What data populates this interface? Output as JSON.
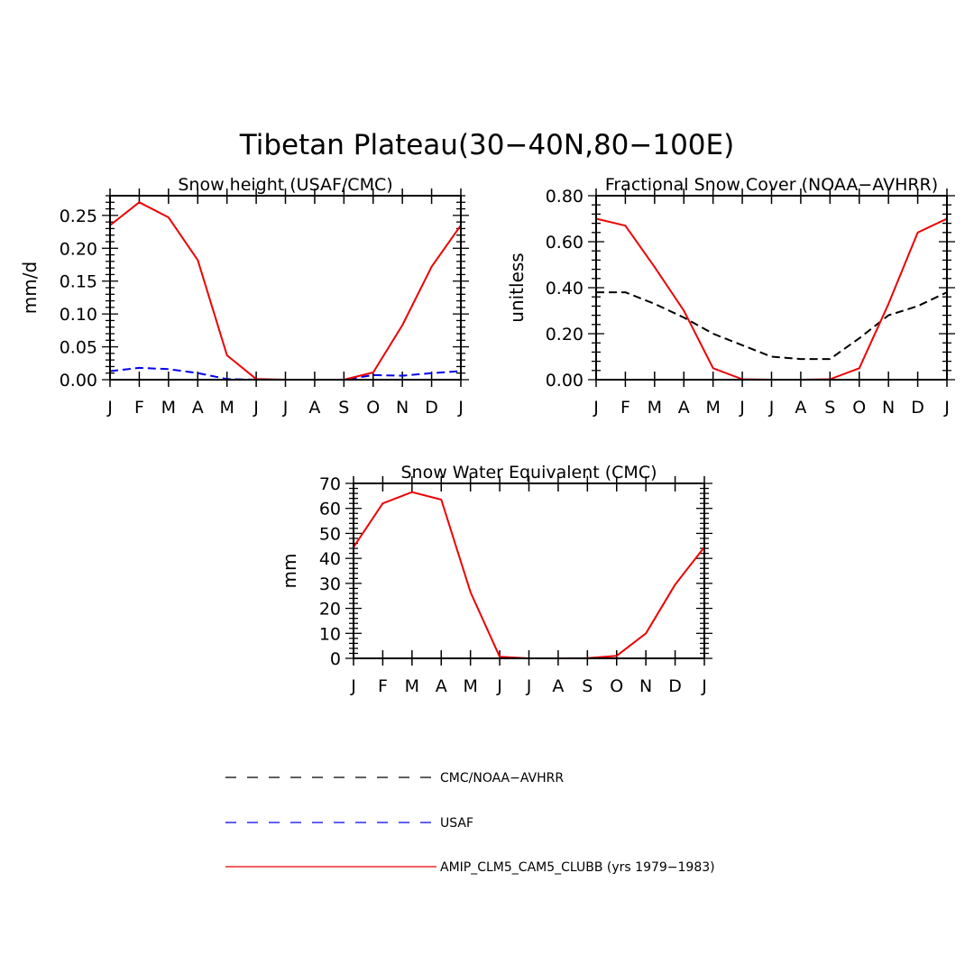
{
  "figure": {
    "title": "Tibetan Plateau(30−40N,80−100E)"
  },
  "months": [
    "J",
    "F",
    "M",
    "A",
    "M",
    "J",
    "J",
    "A",
    "S",
    "O",
    "N",
    "D",
    "J"
  ],
  "legend": [
    {
      "label": "CMC/NOAA−AVHRR",
      "color": "#000000",
      "style": "dashed"
    },
    {
      "label": "USAF",
      "color": "#0000ee",
      "style": "dashed"
    },
    {
      "label": "AMIP_CLM5_CAM5_CLUBB (yrs 1979−1983)",
      "color": "#ee0000",
      "style": "solid"
    }
  ],
  "chart_data": [
    {
      "type": "line",
      "title": "Snow height (USAF/CMC)",
      "xlabel": "",
      "ylabel": "mm/d",
      "ylim": [
        0,
        0.28
      ],
      "yticks": [
        0,
        0.05,
        0.1,
        0.15,
        0.2,
        0.25
      ],
      "yticklabels": [
        "0.00",
        "0.05",
        "0.10",
        "0.15",
        "0.20",
        "0.25"
      ],
      "categories": [
        "J",
        "F",
        "M",
        "A",
        "M",
        "J",
        "J",
        "A",
        "S",
        "O",
        "N",
        "D",
        "J"
      ],
      "series": [
        {
          "name": "CMC/NOAA−AVHRR",
          "color": "#000000",
          "dashed": true,
          "values": [
            0,
            0,
            0,
            0,
            0,
            0,
            0,
            0,
            0,
            0,
            0,
            0,
            0
          ]
        },
        {
          "name": "USAF",
          "color": "#0000ee",
          "dashed": true,
          "values": [
            0.013,
            0.018,
            0.016,
            0.01,
            0.001,
            0,
            0,
            0,
            0,
            0.007,
            0.006,
            0.01,
            0.013
          ]
        },
        {
          "name": "AMIP_CLM5_CAM5_CLUBB (yrs 1979−1983)",
          "color": "#ee0000",
          "dashed": false,
          "values": [
            0.235,
            0.27,
            0.247,
            0.182,
            0.037,
            0.001,
            0,
            0,
            0,
            0.011,
            0.083,
            0.172,
            0.235
          ]
        }
      ]
    },
    {
      "type": "line",
      "title": "Fractional Snow Cover (NOAA−AVHRR)",
      "xlabel": "",
      "ylabel": "unitless",
      "ylim": [
        0,
        0.8
      ],
      "yticks": [
        0,
        0.2,
        0.4,
        0.6,
        0.8
      ],
      "yticklabels": [
        "0.00",
        "0.20",
        "0.40",
        "0.60",
        "0.80"
      ],
      "categories": [
        "J",
        "F",
        "M",
        "A",
        "M",
        "J",
        "J",
        "A",
        "S",
        "O",
        "N",
        "D",
        "J"
      ],
      "series": [
        {
          "name": "CMC/NOAA−AVHRR",
          "color": "#000000",
          "dashed": true,
          "values": [
            0.38,
            0.38,
            0.33,
            0.27,
            0.2,
            0.15,
            0.1,
            0.09,
            0.09,
            0.18,
            0.28,
            0.32,
            0.38
          ]
        },
        {
          "name": "AMIP_CLM5_CAM5_CLUBB (yrs 1979−1983)",
          "color": "#ee0000",
          "dashed": false,
          "values": [
            0.7,
            0.67,
            0.49,
            0.3,
            0.05,
            0.002,
            0,
            0,
            0.002,
            0.05,
            0.33,
            0.64,
            0.7
          ]
        }
      ]
    },
    {
      "type": "line",
      "title": "Snow Water Equivalent (CMC)",
      "xlabel": "",
      "ylabel": "mm",
      "ylim": [
        0,
        70
      ],
      "yticks": [
        0,
        10,
        20,
        30,
        40,
        50,
        60,
        70
      ],
      "yticklabels": [
        "0",
        "10",
        "20",
        "30",
        "40",
        "50",
        "60",
        "70"
      ],
      "categories": [
        "J",
        "F",
        "M",
        "A",
        "M",
        "J",
        "J",
        "A",
        "S",
        "O",
        "N",
        "D",
        "J"
      ],
      "series": [
        {
          "name": "CMC/NOAA−AVHRR",
          "color": "#000000",
          "dashed": true,
          "values": [
            0,
            0,
            0,
            0,
            0,
            0,
            0,
            0,
            0,
            0,
            0,
            0,
            0
          ]
        },
        {
          "name": "AMIP_CLM5_CAM5_CLUBB (yrs 1979−1983)",
          "color": "#ee0000",
          "dashed": false,
          "values": [
            44.5,
            62,
            66.5,
            63.5,
            26.5,
            0.6,
            0,
            0,
            0.1,
            1,
            10,
            29.5,
            44.5
          ]
        }
      ]
    }
  ]
}
